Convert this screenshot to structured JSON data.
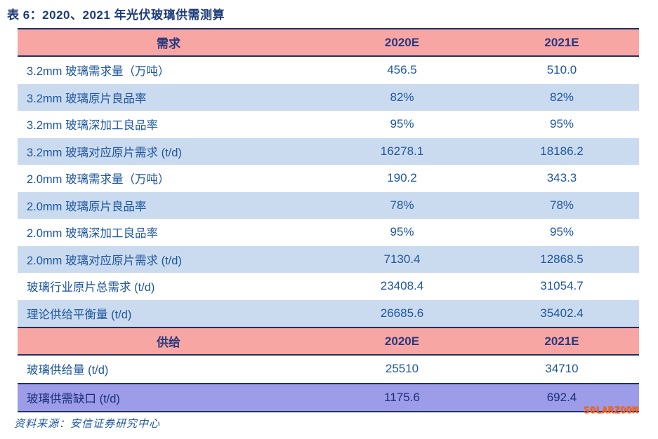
{
  "title": "表 6：2020、2021 年光伏玻璃供需测算",
  "source": "资料来源：安信证券研究中心",
  "watermark": "SOLARZOOM",
  "colors": {
    "header_bg": "#F8A6A4",
    "row_alt_bg": "#CBDBEF",
    "gap_row_bg": "#9C9CE9",
    "border": "#1F3061",
    "title_text": "#1E3C78",
    "header_text": "#27397E",
    "cell_text": "#1E56A0",
    "watermark_color": "#FF6600"
  },
  "table": {
    "sections": [
      {
        "header": {
          "label": "需求",
          "cols": [
            "2020E",
            "2021E"
          ]
        },
        "rows": [
          {
            "label": "3.2mm 玻璃需求量（万吨）",
            "y2020": "456.5",
            "y2021": "510.0"
          },
          {
            "label": "3.2mm 玻璃原片良品率",
            "y2020": "82%",
            "y2021": "82%"
          },
          {
            "label": "3.2mm 玻璃深加工良品率",
            "y2020": "95%",
            "y2021": "95%"
          },
          {
            "label": "3.2mm 玻璃对应原片需求 (t/d)",
            "y2020": "16278.1",
            "y2021": "18186.2"
          },
          {
            "label": "2.0mm 玻璃需求量（万吨）",
            "y2020": "190.2",
            "y2021": "343.3"
          },
          {
            "label": "2.0mm 玻璃原片良品率",
            "y2020": "78%",
            "y2021": "78%"
          },
          {
            "label": "2.0mm 玻璃深加工良品率",
            "y2020": "95%",
            "y2021": "95%"
          },
          {
            "label": "2.0mm 玻璃对应原片需求 (t/d)",
            "y2020": "7130.4",
            "y2021": "12868.5"
          },
          {
            "label": "玻璃行业原片总需求 (t/d)",
            "y2020": "23408.4",
            "y2021": "31054.7"
          },
          {
            "label": "理论供给平衡量 (t/d)",
            "y2020": "26685.6",
            "y2021": "35402.4"
          }
        ]
      },
      {
        "header": {
          "label": "供给",
          "cols": [
            "2020E",
            "2021E"
          ]
        },
        "rows": [
          {
            "label": "玻璃供给量 (t/d)",
            "y2020": "25510",
            "y2021": "34710"
          },
          {
            "label": "玻璃供需缺口 (t/d)",
            "y2020": "1175.6",
            "y2021": "692.4"
          }
        ]
      }
    ]
  }
}
